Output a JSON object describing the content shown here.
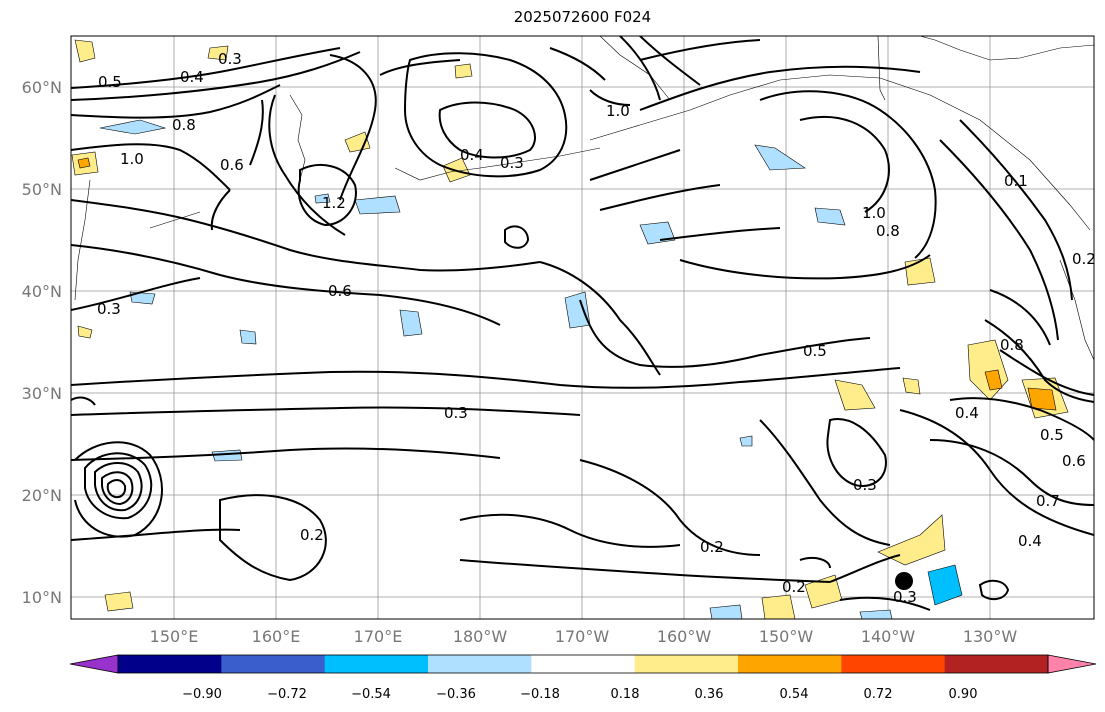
{
  "title": "2025072600 F024",
  "axes": {
    "lat_labels": [
      "60°N",
      "50°N",
      "40°N",
      "30°N",
      "20°N",
      "10°N"
    ],
    "lon_labels": [
      "150°E",
      "160°E",
      "170°E",
      "180°W",
      "170°W",
      "160°W",
      "150°W",
      "140°W",
      "130°W"
    ]
  },
  "colorbar": {
    "ticks": [
      "−0.90",
      "−0.72",
      "−0.54",
      "−0.36",
      "−0.18",
      "0.18",
      "0.36",
      "0.54",
      "0.72",
      "0.90"
    ],
    "colors": [
      "#9932cc",
      "#00008b",
      "#3a5fcd",
      "#00bfff",
      "#b0e0ff",
      "#ffffff",
      "#ffec8b",
      "#ffa500",
      "#ff4500",
      "#b22222",
      "#ff82ab"
    ]
  },
  "contour_labels": [
    "0.5",
    "0.4",
    "0.3",
    "0.8",
    "1.0",
    "0.6",
    "1.2",
    "0.3",
    "0.4",
    "1.0",
    "0.8",
    "0.5",
    "0.3",
    "0.6",
    "0.3",
    "0.3",
    "0.2",
    "0.2",
    "0.2",
    "0.3",
    "0.4",
    "0.5",
    "0.6",
    "0.7",
    "0.4",
    "0.8",
    "1.0",
    "0.2",
    "0.1"
  ],
  "marker": {
    "name": "black-dot",
    "lon": -138.5,
    "lat": 12
  }
}
